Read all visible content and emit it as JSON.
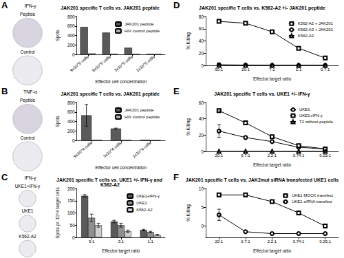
{
  "panels": [
    {
      "letter": "A",
      "stain": "IFN-γ",
      "wells": [
        "Peptide",
        "Control"
      ]
    },
    {
      "letter": "B",
      "stain": "TNF-α",
      "wells": [
        "Peptide",
        "Control"
      ]
    },
    {
      "letter": "C",
      "stain": "IFN-γ",
      "wells": [
        "UKE1+IFN-γ",
        "UKE1",
        "K562-A2"
      ]
    },
    {
      "letter": "D"
    },
    {
      "letter": "E"
    },
    {
      "letter": "F"
    }
  ],
  "chart_data": [
    {
      "type": "bar",
      "title": "JAK201 specific T cells vs. JAK201 peptide",
      "x_label": "Effector cell concentration",
      "y_label": "Spots",
      "categories": [
        "9x10^5 cells",
        "6x10^5 cells",
        "3x10^5 cells",
        "1x10^5 cells"
      ],
      "series": [
        {
          "name": "JAK201 peptide",
          "color": "#5a5a5a",
          "values": [
            580,
            460,
            140,
            5
          ]
        },
        {
          "name": "HIV control peptide",
          "color": "#b0b0b0",
          "values": [
            20,
            10,
            5,
            2
          ]
        }
      ],
      "ylim": [
        0,
        800
      ],
      "yticks": [
        0,
        200,
        400,
        600,
        800
      ],
      "grid": false,
      "legend": "top-right"
    },
    {
      "type": "bar",
      "title": "JAK201 specific T cells vs. JAK201 peptide",
      "x_label": "Effector cell concentration",
      "y_label": "Spots",
      "categories": [
        "9x10^4 cells",
        "3x10^4 cells",
        "1x10^4 cells"
      ],
      "series": [
        {
          "name": "JAK201 peptide",
          "color": "#5a5a5a",
          "values": [
            530,
            250,
            10
          ],
          "errors": [
            230,
            10,
            null
          ]
        },
        {
          "name": "HIV control peptide",
          "color": "#b0b0b0",
          "values": [
            5,
            5,
            2
          ]
        }
      ],
      "ylim": [
        0,
        800
      ],
      "yticks": [
        0,
        200,
        400,
        600,
        800
      ],
      "grid": false,
      "legend": "top-right"
    },
    {
      "type": "bar",
      "title": "JAK201 specific T cells vs. UKE1 +/- IFN-γ and K562-A2",
      "x_label": "Effector:target ratio",
      "y_label": "Spots pr. 10^4 target cells",
      "categories": [
        "9:1",
        "3:1",
        "1:1"
      ],
      "series": [
        {
          "name": "UKE1+IFN-γ",
          "color": "#5a5a5a",
          "values": [
            170,
            65,
            30
          ],
          "errors": [
            5,
            5,
            3
          ]
        },
        {
          "name": "UKE1",
          "color": "#909090",
          "values": [
            80,
            50,
            22
          ],
          "errors": [
            15,
            8,
            3
          ]
        },
        {
          "name": "K562-A2",
          "color": "#cfcfcf",
          "values": [
            50,
            25,
            10
          ],
          "errors": [
            8,
            5,
            2
          ]
        }
      ],
      "ylim": [
        0,
        200
      ],
      "yticks": [
        0,
        50,
        100,
        150,
        200
      ],
      "grid": false,
      "legend": "top-right"
    },
    {
      "type": "line",
      "title": "JAK201 specific T cells vs. K562-A2 +/- JAK201 peptide",
      "x_label": "Effector:target ratio",
      "y_label": "% Killing",
      "categories": [
        "50:1",
        "20:1",
        "7:1",
        "2:1",
        "0.7:1"
      ],
      "series": [
        {
          "name": "K562-A2 + JAK201",
          "color": "#000000",
          "marker": "square",
          "line_style": "solid",
          "values": [
            72,
            69,
            55,
            28,
            12
          ]
        },
        {
          "name": "K562-A3 + JAK201",
          "color": "#000000",
          "marker": "circle",
          "line_style": "solid",
          "values": [
            1,
            0.5,
            0,
            0,
            0
          ]
        },
        {
          "name": "K562-A2",
          "color": "#000000",
          "marker": "triangle",
          "line_style": "solid",
          "values": [
            0,
            0,
            0,
            0,
            0
          ]
        }
      ],
      "ylim": [
        0,
        80
      ],
      "yticks": [
        0,
        20,
        40,
        60,
        80
      ],
      "grid": false,
      "legend": "top-right"
    },
    {
      "type": "line",
      "title": "JAK201 specific T cells vs. UKE1 +/- IFN-γ",
      "x_label": "Effector:target ratio",
      "y_label": "% Killing",
      "categories": [
        "20:1",
        "6.7:1",
        "2.2:1",
        "0.74:1",
        "0.25:1"
      ],
      "series": [
        {
          "name": "UKE1",
          "color": "#000000",
          "marker": "circle",
          "line_style": "solid",
          "values": [
            25,
            17,
            12,
            5,
            3
          ],
          "errors": [
            8,
            null,
            null,
            null,
            null
          ]
        },
        {
          "name": "UKE1+IFN-γ",
          "color": "#000000",
          "marker": "square",
          "line_style": "solid",
          "values": [
            50,
            35,
            18,
            7,
            3
          ],
          "errors": [
            2,
            null,
            null,
            null,
            null
          ]
        },
        {
          "name": "T2 without peptide",
          "color": "#000000",
          "marker": "triangle",
          "line_style": "solid",
          "values": [
            0,
            0,
            0,
            0,
            0
          ]
        }
      ],
      "ylim": [
        0,
        60
      ],
      "yticks": [
        0,
        20,
        40,
        60
      ],
      "grid": false,
      "legend": "top-right"
    },
    {
      "type": "line",
      "title": "JAK201 specific T cells vs. JAK2mut siRNA transfected UKE1 cells",
      "x_label": "Effector:target ratio",
      "y_label": "% Killing",
      "categories": [
        "20:1",
        "6.7:1",
        "2.2:1",
        "0.74:1",
        "0.25:1"
      ],
      "series": [
        {
          "name": "UKE1 MOCK transfect",
          "color": "#000000",
          "marker": "square",
          "line_style": "solid",
          "values": [
            8.3,
            8.3,
            6.5,
            3.5,
            0
          ]
        },
        {
          "name": "UKE1 siRNA transfect",
          "color": "#000000",
          "marker": "circle",
          "line_style": "solid",
          "values": [
            3,
            -1.5,
            -2,
            -2,
            -2
          ],
          "errors": [
            1.5,
            null,
            null,
            null,
            null
          ]
        }
      ],
      "ylim": [
        -3,
        10
      ],
      "yticks": [
        0,
        5,
        10
      ],
      "grid": false,
      "legend": "top-right"
    }
  ]
}
